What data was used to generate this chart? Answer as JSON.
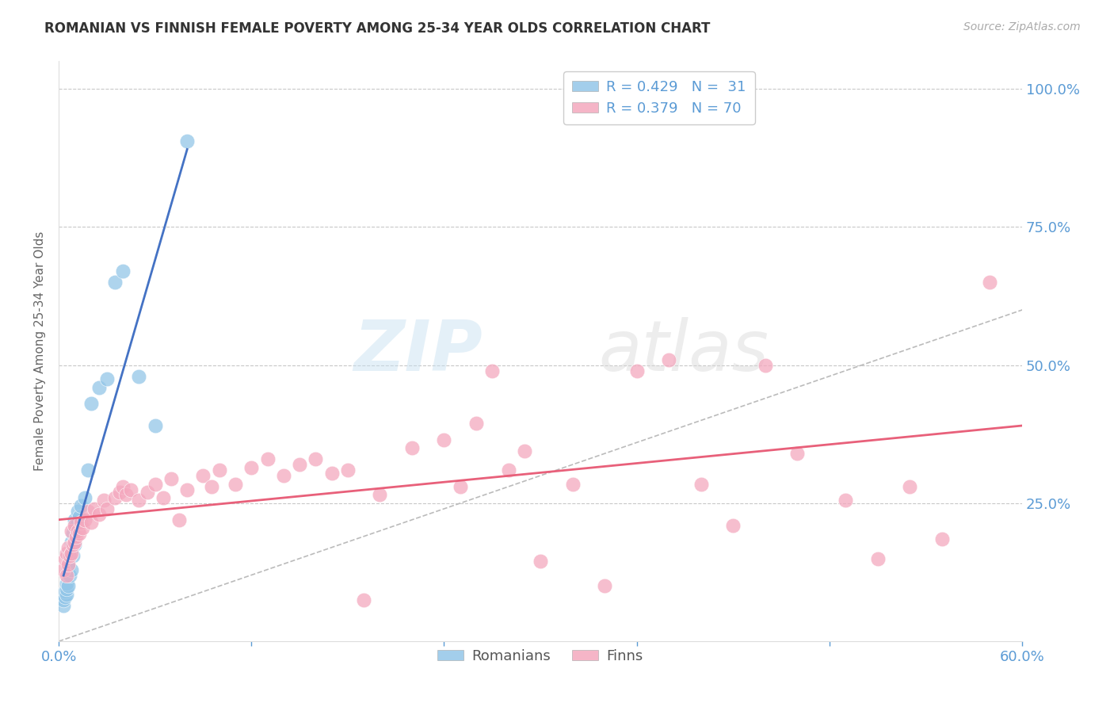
{
  "title": "ROMANIAN VS FINNISH FEMALE POVERTY AMONG 25-34 YEAR OLDS CORRELATION CHART",
  "source": "Source: ZipAtlas.com",
  "ylabel": "Female Poverty Among 25-34 Year Olds",
  "xlim": [
    0.0,
    0.6
  ],
  "ylim": [
    0.0,
    1.05
  ],
  "xticks": [
    0.0,
    0.12,
    0.24,
    0.36,
    0.48,
    0.6
  ],
  "xticklabels": [
    "0.0%",
    "",
    "",
    "",
    "",
    "60.0%"
  ],
  "yticks": [
    0.0,
    0.25,
    0.5,
    0.75,
    1.0
  ],
  "yticklabels": [
    "",
    "25.0%",
    "50.0%",
    "75.0%",
    "100.0%"
  ],
  "title_color": "#333333",
  "tick_color": "#5b9bd5",
  "grid_color": "#c8c8c8",
  "watermark": "ZIPatlas",
  "legend_r_romanian": "R = 0.429",
  "legend_n_romanian": "N =  31",
  "legend_r_finns": "R = 0.379",
  "legend_n_finns": "N = 70",
  "romanian_color": "#93c6e8",
  "finns_color": "#f4a8be",
  "romanian_line_color": "#4472c4",
  "finns_line_color": "#e8607a",
  "diagonal_color": "#bbbbbb",
  "romanian_x": [
    0.003,
    0.003,
    0.004,
    0.004,
    0.005,
    0.005,
    0.005,
    0.006,
    0.006,
    0.007,
    0.007,
    0.008,
    0.008,
    0.009,
    0.009,
    0.01,
    0.01,
    0.011,
    0.012,
    0.013,
    0.014,
    0.016,
    0.018,
    0.02,
    0.025,
    0.03,
    0.035,
    0.04,
    0.05,
    0.06,
    0.08
  ],
  "romanian_y": [
    0.065,
    0.075,
    0.08,
    0.09,
    0.085,
    0.095,
    0.105,
    0.1,
    0.135,
    0.12,
    0.155,
    0.13,
    0.18,
    0.155,
    0.195,
    0.175,
    0.22,
    0.21,
    0.235,
    0.225,
    0.245,
    0.26,
    0.31,
    0.43,
    0.46,
    0.475,
    0.65,
    0.67,
    0.48,
    0.39,
    0.905
  ],
  "finns_x": [
    0.003,
    0.004,
    0.005,
    0.005,
    0.006,
    0.006,
    0.007,
    0.008,
    0.008,
    0.009,
    0.01,
    0.01,
    0.011,
    0.012,
    0.013,
    0.014,
    0.015,
    0.016,
    0.018,
    0.02,
    0.022,
    0.025,
    0.028,
    0.03,
    0.035,
    0.038,
    0.04,
    0.042,
    0.045,
    0.05,
    0.055,
    0.06,
    0.065,
    0.07,
    0.075,
    0.08,
    0.09,
    0.095,
    0.1,
    0.11,
    0.12,
    0.13,
    0.14,
    0.15,
    0.16,
    0.17,
    0.18,
    0.19,
    0.2,
    0.22,
    0.24,
    0.25,
    0.26,
    0.27,
    0.28,
    0.29,
    0.3,
    0.32,
    0.34,
    0.36,
    0.38,
    0.4,
    0.42,
    0.44,
    0.46,
    0.49,
    0.51,
    0.53,
    0.55,
    0.58
  ],
  "finns_y": [
    0.13,
    0.15,
    0.12,
    0.16,
    0.14,
    0.17,
    0.155,
    0.16,
    0.2,
    0.175,
    0.18,
    0.21,
    0.19,
    0.2,
    0.195,
    0.215,
    0.205,
    0.22,
    0.235,
    0.215,
    0.24,
    0.23,
    0.255,
    0.24,
    0.26,
    0.27,
    0.28,
    0.265,
    0.275,
    0.255,
    0.27,
    0.285,
    0.26,
    0.295,
    0.22,
    0.275,
    0.3,
    0.28,
    0.31,
    0.285,
    0.315,
    0.33,
    0.3,
    0.32,
    0.33,
    0.305,
    0.31,
    0.075,
    0.265,
    0.35,
    0.365,
    0.28,
    0.395,
    0.49,
    0.31,
    0.345,
    0.145,
    0.285,
    0.1,
    0.49,
    0.51,
    0.285,
    0.21,
    0.5,
    0.34,
    0.255,
    0.15,
    0.28,
    0.185,
    0.65
  ]
}
